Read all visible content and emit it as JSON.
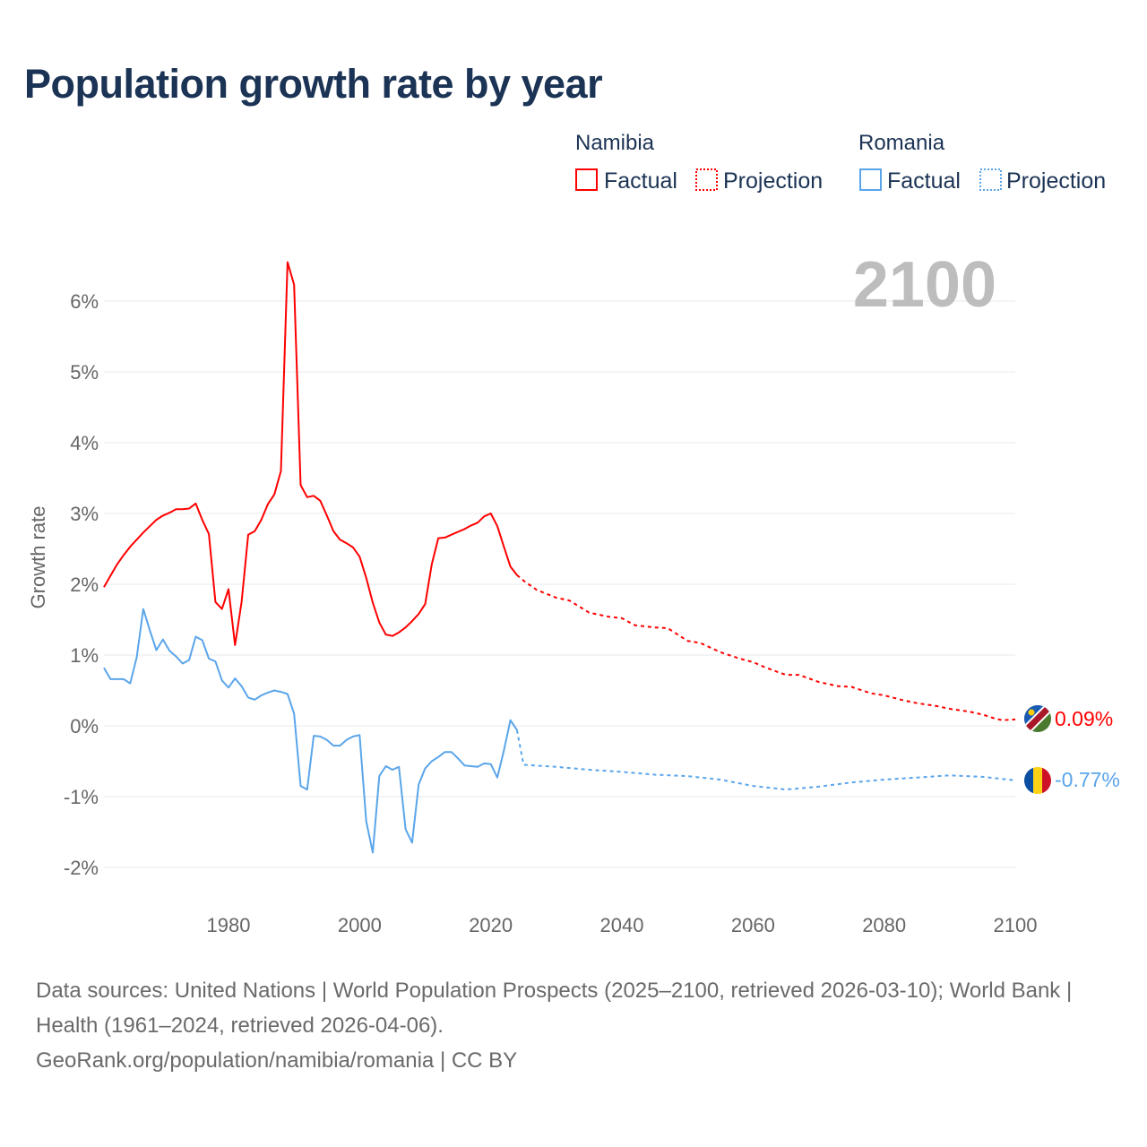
{
  "title": "Population growth rate by year",
  "legend": {
    "groups": [
      {
        "country": "Namibia",
        "factual": "Factual",
        "projection": "Projection",
        "color": "#ff0000"
      },
      {
        "country": "Romania",
        "factual": "Factual",
        "projection": "Projection",
        "color": "#5aa5ea"
      }
    ]
  },
  "year_label": "2100",
  "end_labels": {
    "namibia": "0.09%",
    "romania": "-0.77%"
  },
  "footer": {
    "sources": "Data sources: United Nations | World Population Prospects (2025–2100, retrieved 2026-03-10); World Bank | Health (1961–2024, retrieved 2026-04-06).",
    "credit": "GeoRank.org/population/namibia/romania | CC BY"
  },
  "chart_data": {
    "type": "line",
    "title": "Population growth rate by year",
    "xlabel": "",
    "ylabel": "Growth rate",
    "xlim": [
      1961,
      2100
    ],
    "ylim": [
      -2.5,
      7
    ],
    "yticks": [
      -2,
      -1,
      0,
      1,
      2,
      3,
      4,
      5,
      6
    ],
    "ytick_labels": [
      "-2%",
      "-1%",
      "0%",
      "1%",
      "2%",
      "3%",
      "4%",
      "5%",
      "6%"
    ],
    "xticks": [
      1980,
      2000,
      2020,
      2040,
      2060,
      2080,
      2100
    ],
    "xtick_labels": [
      "1980",
      "2000",
      "2020",
      "2040",
      "2060",
      "2080",
      "2100"
    ],
    "grid": true,
    "series": [
      {
        "name": "Namibia Factual",
        "country": "Namibia",
        "style": "solid",
        "color": "#ff0000",
        "points": [
          [
            1961,
            1.96
          ],
          [
            1962,
            2.12
          ],
          [
            1963,
            2.28
          ],
          [
            1964,
            2.41
          ],
          [
            1965,
            2.53
          ],
          [
            1966,
            2.63
          ],
          [
            1967,
            2.73
          ],
          [
            1968,
            2.82
          ],
          [
            1969,
            2.91
          ],
          [
            1970,
            2.97
          ],
          [
            1971,
            3.01
          ],
          [
            1972,
            3.06
          ],
          [
            1973,
            3.06
          ],
          [
            1974,
            3.07
          ],
          [
            1975,
            3.14
          ],
          [
            1976,
            2.91
          ],
          [
            1977,
            2.71
          ],
          [
            1978,
            1.75
          ],
          [
            1979,
            1.65
          ],
          [
            1980,
            1.93
          ],
          [
            1981,
            1.14
          ],
          [
            1982,
            1.75
          ],
          [
            1983,
            2.7
          ],
          [
            1984,
            2.75
          ],
          [
            1985,
            2.91
          ],
          [
            1986,
            3.13
          ],
          [
            1987,
            3.27
          ],
          [
            1988,
            3.6
          ],
          [
            1989,
            6.55
          ],
          [
            1990,
            6.23
          ],
          [
            1991,
            3.4
          ],
          [
            1992,
            3.23
          ],
          [
            1993,
            3.25
          ],
          [
            1994,
            3.18
          ],
          [
            1995,
            2.97
          ],
          [
            1996,
            2.75
          ],
          [
            1997,
            2.63
          ],
          [
            1998,
            2.58
          ],
          [
            1999,
            2.52
          ],
          [
            2000,
            2.39
          ],
          [
            2001,
            2.09
          ],
          [
            2002,
            1.74
          ],
          [
            2003,
            1.46
          ],
          [
            2004,
            1.29
          ],
          [
            2005,
            1.27
          ],
          [
            2006,
            1.32
          ],
          [
            2007,
            1.39
          ],
          [
            2008,
            1.48
          ],
          [
            2009,
            1.58
          ],
          [
            2010,
            1.72
          ],
          [
            2011,
            2.28
          ],
          [
            2012,
            2.65
          ],
          [
            2013,
            2.66
          ],
          [
            2014,
            2.7
          ],
          [
            2015,
            2.74
          ],
          [
            2016,
            2.78
          ],
          [
            2017,
            2.83
          ],
          [
            2018,
            2.87
          ],
          [
            2019,
            2.96
          ],
          [
            2020,
            3.0
          ],
          [
            2021,
            2.82
          ],
          [
            2022,
            2.53
          ],
          [
            2023,
            2.25
          ],
          [
            2024,
            2.13
          ]
        ]
      },
      {
        "name": "Namibia Projection",
        "country": "Namibia",
        "style": "dotted",
        "color": "#ff0000",
        "points": [
          [
            2024,
            2.13
          ],
          [
            2025,
            2.05
          ],
          [
            2027,
            1.92
          ],
          [
            2030,
            1.81
          ],
          [
            2032,
            1.77
          ],
          [
            2035,
            1.6
          ],
          [
            2038,
            1.54
          ],
          [
            2040,
            1.52
          ],
          [
            2042,
            1.42
          ],
          [
            2045,
            1.39
          ],
          [
            2047,
            1.38
          ],
          [
            2050,
            1.2
          ],
          [
            2052,
            1.17
          ],
          [
            2055,
            1.04
          ],
          [
            2058,
            0.95
          ],
          [
            2060,
            0.9
          ],
          [
            2062,
            0.82
          ],
          [
            2065,
            0.72
          ],
          [
            2067,
            0.72
          ],
          [
            2070,
            0.62
          ],
          [
            2073,
            0.56
          ],
          [
            2075,
            0.55
          ],
          [
            2078,
            0.46
          ],
          [
            2080,
            0.43
          ],
          [
            2083,
            0.36
          ],
          [
            2085,
            0.32
          ],
          [
            2088,
            0.28
          ],
          [
            2090,
            0.24
          ],
          [
            2093,
            0.2
          ],
          [
            2095,
            0.16
          ],
          [
            2097,
            0.1
          ],
          [
            2098,
            0.08
          ],
          [
            2100,
            0.09
          ]
        ]
      },
      {
        "name": "Romania Factual",
        "country": "Romania",
        "style": "solid",
        "color": "#5aa5ea",
        "points": [
          [
            1961,
            0.82
          ],
          [
            1962,
            0.66
          ],
          [
            1963,
            0.66
          ],
          [
            1964,
            0.66
          ],
          [
            1965,
            0.6
          ],
          [
            1966,
            0.97
          ],
          [
            1967,
            1.65
          ],
          [
            1968,
            1.35
          ],
          [
            1969,
            1.07
          ],
          [
            1970,
            1.22
          ],
          [
            1971,
            1.06
          ],
          [
            1972,
            0.98
          ],
          [
            1973,
            0.88
          ],
          [
            1974,
            0.93
          ],
          [
            1975,
            1.26
          ],
          [
            1976,
            1.21
          ],
          [
            1977,
            0.95
          ],
          [
            1978,
            0.91
          ],
          [
            1979,
            0.64
          ],
          [
            1980,
            0.54
          ],
          [
            1981,
            0.67
          ],
          [
            1982,
            0.56
          ],
          [
            1983,
            0.4
          ],
          [
            1984,
            0.37
          ],
          [
            1985,
            0.43
          ],
          [
            1986,
            0.47
          ],
          [
            1987,
            0.5
          ],
          [
            1988,
            0.48
          ],
          [
            1989,
            0.45
          ],
          [
            1990,
            0.17
          ],
          [
            1991,
            -0.85
          ],
          [
            1992,
            -0.9
          ],
          [
            1993,
            -0.14
          ],
          [
            1994,
            -0.15
          ],
          [
            1995,
            -0.2
          ],
          [
            1996,
            -0.28
          ],
          [
            1997,
            -0.28
          ],
          [
            1998,
            -0.2
          ],
          [
            1999,
            -0.15
          ],
          [
            2000,
            -0.13
          ],
          [
            2001,
            -1.35
          ],
          [
            2002,
            -1.79
          ],
          [
            2003,
            -0.71
          ],
          [
            2004,
            -0.57
          ],
          [
            2005,
            -0.62
          ],
          [
            2006,
            -0.58
          ],
          [
            2007,
            -1.46
          ],
          [
            2008,
            -1.65
          ],
          [
            2009,
            -0.83
          ],
          [
            2010,
            -0.6
          ],
          [
            2011,
            -0.5
          ],
          [
            2012,
            -0.44
          ],
          [
            2013,
            -0.37
          ],
          [
            2014,
            -0.37
          ],
          [
            2015,
            -0.46
          ],
          [
            2016,
            -0.56
          ],
          [
            2017,
            -0.57
          ],
          [
            2018,
            -0.58
          ],
          [
            2019,
            -0.53
          ],
          [
            2020,
            -0.54
          ],
          [
            2021,
            -0.73
          ],
          [
            2022,
            -0.35
          ],
          [
            2023,
            0.08
          ],
          [
            2024,
            -0.06
          ]
        ]
      },
      {
        "name": "Romania Projection",
        "country": "Romania",
        "style": "dotted",
        "color": "#5aa5ea",
        "points": [
          [
            2024,
            -0.06
          ],
          [
            2025,
            -0.55
          ],
          [
            2030,
            -0.58
          ],
          [
            2035,
            -0.62
          ],
          [
            2040,
            -0.65
          ],
          [
            2045,
            -0.69
          ],
          [
            2050,
            -0.71
          ],
          [
            2055,
            -0.76
          ],
          [
            2060,
            -0.85
          ],
          [
            2065,
            -0.9
          ],
          [
            2070,
            -0.86
          ],
          [
            2075,
            -0.8
          ],
          [
            2080,
            -0.76
          ],
          [
            2085,
            -0.73
          ],
          [
            2090,
            -0.7
          ],
          [
            2095,
            -0.72
          ],
          [
            2100,
            -0.77
          ]
        ]
      }
    ]
  }
}
